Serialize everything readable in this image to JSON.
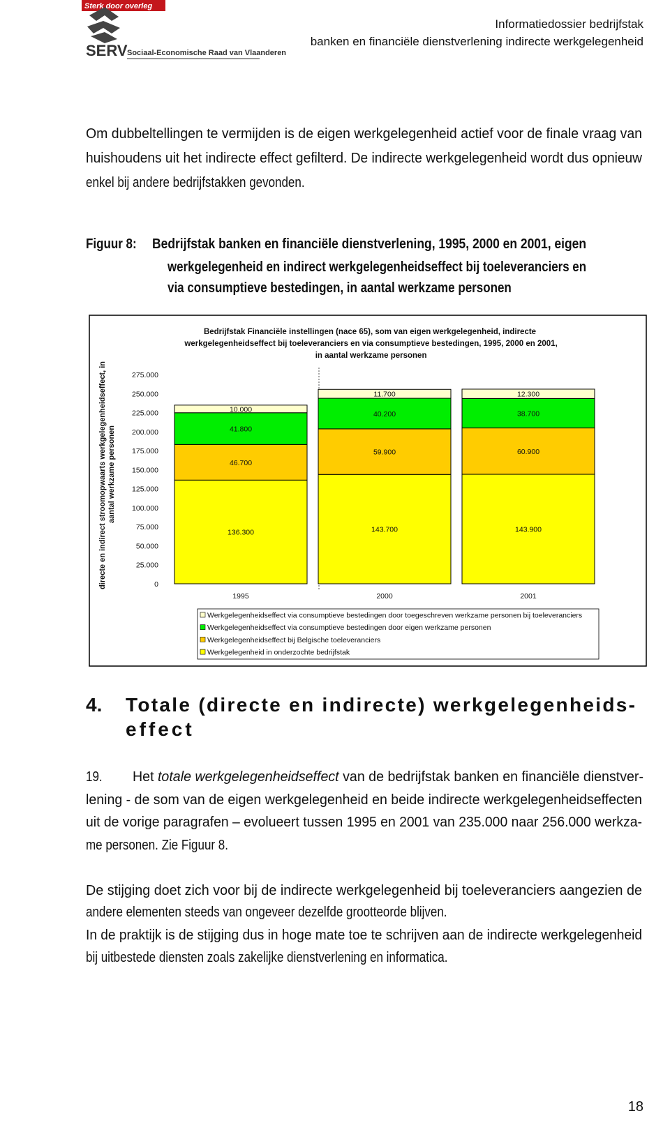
{
  "header": {
    "logo_banner": "Sterk door overleg",
    "logo_acronym": "SERV",
    "logo_name": "Sociaal-Economische Raad van Vlaanderen",
    "title": "Informatiedossier bedrijfstak",
    "subtitle": "banken en financiële dienstverlening indirecte werkgelegenheid"
  },
  "intro": {
    "lines": [
      "Om dubbeltellingen te vermijden is de eigen werkgelegenheid actief voor de finale vraag van",
      "huishoudens uit het indirecte effect gefilterd. De indirecte werkgelegenheid wordt dus opnieuw",
      "enkel bij andere bedrijfstakken gevonden."
    ]
  },
  "figure": {
    "label": "Figuur 8:",
    "lines": [
      "Bedrijfstak banken en financiële dienstverlening, 1995, 2000 en 2001, eigen",
      "werkgelegenheid en indirect werkgelegenheidseffect bij toeleveranciers en",
      "via consumptieve bestedingen, in aantal werkzame personen"
    ]
  },
  "chart_data": {
    "type": "bar",
    "stacked": true,
    "title": "Bedrijfstak Financiële instellingen (nace 65), som van eigen werkgelegenheid, indirecte werkgelegenheidseffect bij toeleveranciers en via consumptieve bestedingen, 1995, 2000 en 2001, in aantal werkzame personen",
    "ylabel": "directe en indirect stroomopwaarts werkgelegenheidseffect, in aantal werkzame personen",
    "categories": [
      "1995",
      "2000",
      "2001"
    ],
    "series": [
      {
        "name": "Werkgelegenheid in onderzochte bedrijfstak",
        "color": "#ffff00",
        "values": [
          136300,
          143700,
          143900
        ],
        "value_labels": [
          "136.300",
          "143.700",
          "143.900"
        ]
      },
      {
        "name": "Werkgelegenheidseffect bij Belgische toeleveranciers",
        "color": "#ffcc00",
        "values": [
          46700,
          59900,
          60900
        ],
        "value_labels": [
          "46.700",
          "59.900",
          "60.900"
        ]
      },
      {
        "name": "Werkgelegenheidseffect via consumptieve bestedingen door eigen werkzame personen",
        "color": "#00ee00",
        "values": [
          41800,
          40200,
          38700
        ],
        "value_labels": [
          "41.800",
          "40.200",
          "38.700"
        ]
      },
      {
        "name": "Werkgelegenheidseffect via consumptieve bestedingen door toegeschreven werkzame personen bij toeleveranciers",
        "color": "#ffffcc",
        "values": [
          10000,
          11700,
          12300
        ],
        "value_labels": [
          "10.000",
          "11.700",
          "12.300"
        ]
      }
    ],
    "ylim": [
      0,
      275000
    ],
    "yticks": [
      0,
      {
        "value": 25000,
        "label": "25.000"
      },
      {
        "value": 50000,
        "label": "50.000"
      },
      {
        "value": 75000,
        "label": "75.000"
      },
      {
        "value": 100000,
        "label": "100.000"
      },
      {
        "value": 125000,
        "label": "125.000"
      },
      {
        "value": 150000,
        "label": "150.000"
      },
      {
        "value": 175000,
        "label": "175.000"
      },
      {
        "value": 200000,
        "label": "200.000"
      },
      {
        "value": 225000,
        "label": "225.000"
      },
      {
        "value": 250000,
        "label": "250.000"
      },
      {
        "value": 275000,
        "label": "275.000"
      }
    ],
    "grid": false,
    "legend": "bottom"
  },
  "section": {
    "number": "4.",
    "lines": [
      "Totale (directe en indirecte) werkgelegenheids-",
      "effect"
    ]
  },
  "paragraph_19": {
    "number": "19.",
    "first_line": [
      "Het ",
      "totale werkgelegenheidseffect",
      " van de bedrijfstak banken en financiële dienstver-"
    ],
    "lines": [
      "lening - de som van de eigen werkgelegenheid en beide indirecte werkgelegenheidseffecten",
      "uit de vorige paragrafen – evolueert tussen 1995 en 2001 van 235.000 naar 256.000 werkza-",
      "me personen. Zie Figuur 8."
    ]
  },
  "closing": [
    {
      "lines": [
        "De stijging doet zich voor bij de indirecte werkgelegenheid bij toeleveranciers aangezien de",
        "andere elementen steeds van ongeveer dezelfde grootteorde blijven."
      ]
    },
    {
      "lines": [
        "In de praktijk is de stijging dus in hoge mate toe te schrijven aan de indirecte werkgelegenheid",
        "bij uitbestede diensten zoals zakelijke dienstverlening en informatica."
      ]
    }
  ],
  "page_number": "18"
}
